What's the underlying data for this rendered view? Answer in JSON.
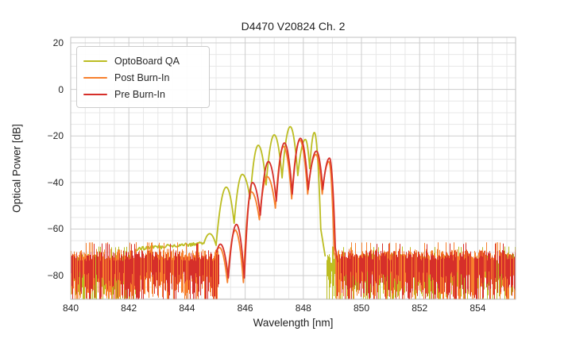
{
  "chart_data": {
    "type": "line",
    "title": "D4470 V20824 Ch. 2",
    "xlabel": "Wavelength [nm]",
    "ylabel": "Optical Power [dB]",
    "xlim": [
      840,
      855.3
    ],
    "ylim": [
      -90.2,
      22.4
    ],
    "xticks": [
      840,
      842,
      844,
      846,
      848,
      850,
      852,
      854
    ],
    "yticks": [
      20,
      0,
      -20,
      -40,
      -60,
      -80
    ],
    "minor_x_step_nm": 0.5,
    "minor_y_step_dB": 5,
    "grid": "major and minor, light gray",
    "legend_position": "upper left",
    "noise_floor": {
      "top_dB": -71,
      "bottom_dB": -90,
      "description": "dense spiky analyzer noise floor outside the laser signal band"
    },
    "signal_band_nm": [
      844.6,
      849.2
    ],
    "series": [
      {
        "name": "OptoBoard QA",
        "color": "#bcbd22",
        "noise_top_dB": -72.5,
        "noise_coverage": 1.0,
        "noise_regions": [
          [
            840,
            842.3
          ],
          [
            848.78,
            855.3
          ]
        ],
        "baseline": {
          "from_nm": 842.25,
          "to_nm": 844.58,
          "start_dB": -68.5,
          "end_dB": -66.2,
          "jitter_dB": 1.6
        },
        "path": [
          [
            844.58,
            -66.2,
            "v"
          ],
          [
            844.78,
            -62,
            "p"
          ],
          [
            845.0,
            -67,
            "v"
          ],
          [
            845.35,
            -42,
            "p"
          ],
          [
            845.62,
            -57.5,
            "v"
          ],
          [
            845.9,
            -36.5,
            "p"
          ],
          [
            846.17,
            -47,
            "v"
          ],
          [
            846.45,
            -24,
            "p"
          ],
          [
            846.72,
            -41,
            "v"
          ],
          [
            847.0,
            -19.5,
            "p"
          ],
          [
            847.27,
            -38,
            "v"
          ],
          [
            847.55,
            -16,
            "p"
          ],
          [
            847.81,
            -37,
            "v"
          ],
          [
            848.07,
            -21.5,
            "p"
          ],
          [
            848.22,
            -34,
            "v"
          ],
          [
            848.38,
            -18.5,
            "p"
          ],
          [
            848.6,
            -60,
            "v"
          ],
          [
            848.75,
            -71.5,
            "v"
          ]
        ]
      },
      {
        "name": "Post Burn-In",
        "color": "#f7802d",
        "noise_top_dB": -70.8,
        "noise_coverage": 0.95,
        "noise_regions": [
          [
            840,
            845.07
          ],
          [
            849.08,
            855.3
          ]
        ],
        "path": [
          [
            844.98,
            -70,
            "v"
          ],
          [
            845.12,
            -68,
            "p"
          ],
          [
            845.39,
            -83,
            "v"
          ],
          [
            845.66,
            -60.5,
            "p"
          ],
          [
            845.94,
            -83,
            "v"
          ],
          [
            846.21,
            -44,
            "p"
          ],
          [
            846.49,
            -56,
            "v"
          ],
          [
            846.76,
            -37.5,
            "p"
          ],
          [
            847.04,
            -51,
            "v"
          ],
          [
            847.32,
            -24.5,
            "p"
          ],
          [
            847.6,
            -47,
            "v"
          ],
          [
            847.88,
            -21.8,
            "p"
          ],
          [
            848.15,
            -45,
            "v"
          ],
          [
            848.43,
            -28,
            "p"
          ],
          [
            848.65,
            -45,
            "v"
          ],
          [
            848.88,
            -31,
            "p"
          ],
          [
            849.06,
            -70,
            "v"
          ],
          [
            849.14,
            -74,
            "v"
          ]
        ]
      },
      {
        "name": "Pre Burn-In",
        "color": "#d62f2a",
        "noise_top_dB": -71.3,
        "noise_coverage": 0.78,
        "noise_regions": [
          [
            840,
            845.1
          ],
          [
            849.15,
            855.3
          ]
        ],
        "path": [
          [
            845.02,
            -70,
            "v"
          ],
          [
            845.15,
            -66.5,
            "p"
          ],
          [
            845.42,
            -81,
            "v"
          ],
          [
            845.7,
            -58,
            "p"
          ],
          [
            845.97,
            -81,
            "v"
          ],
          [
            846.25,
            -40,
            "p"
          ],
          [
            846.52,
            -54,
            "v"
          ],
          [
            846.8,
            -31,
            "p"
          ],
          [
            847.07,
            -48,
            "v"
          ],
          [
            847.35,
            -23,
            "p"
          ],
          [
            847.62,
            -45,
            "v"
          ],
          [
            847.9,
            -21,
            "p"
          ],
          [
            848.17,
            -43,
            "v"
          ],
          [
            848.45,
            -26.5,
            "p"
          ],
          [
            848.67,
            -43,
            "v"
          ],
          [
            848.9,
            -29.5,
            "p"
          ],
          [
            849.1,
            -68,
            "v"
          ],
          [
            849.18,
            -74,
            "v"
          ]
        ]
      }
    ]
  }
}
